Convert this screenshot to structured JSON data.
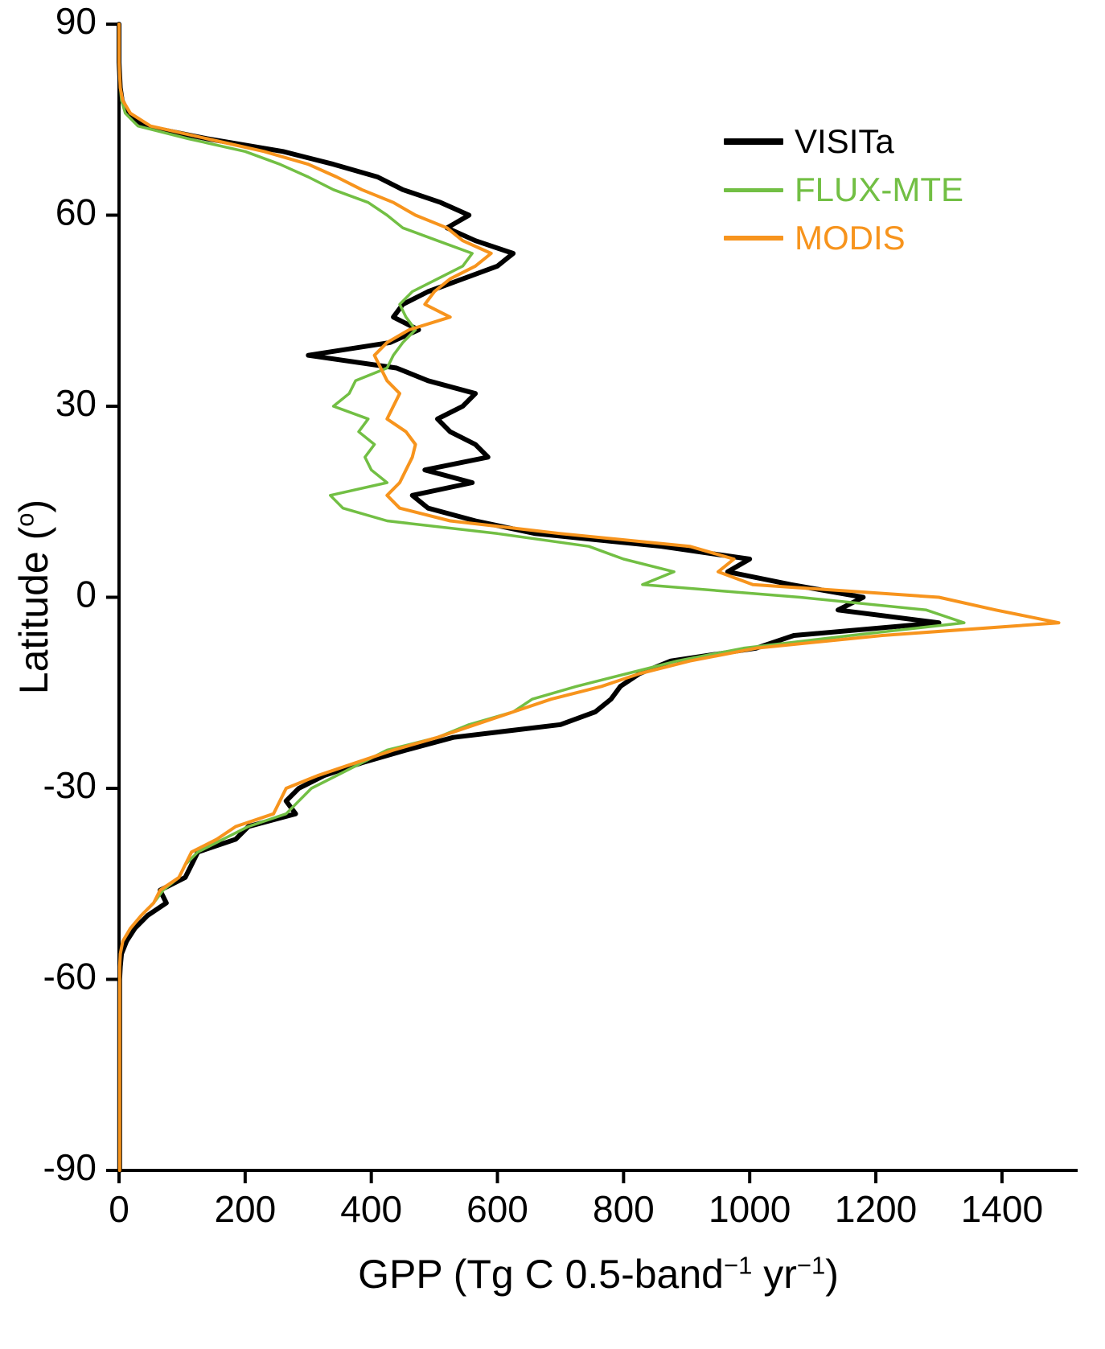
{
  "figure": {
    "background": "#ffffff",
    "axis_color": "#000000"
  },
  "labels": {
    "ylabel_parts": [
      "Latitude (",
      "o",
      ")"
    ],
    "xlabel_parts": [
      "GPP (Tg C 0.5-band",
      "−1",
      " yr",
      "−1",
      ")"
    ]
  },
  "chart_data": {
    "type": "line",
    "orientation": "value-on-x_latitude-on-y",
    "title": "",
    "xlabel": "GPP (Tg C 0.5-band-1 yr-1)",
    "ylabel": "Latitude (deg)",
    "xlim": [
      0,
      1520
    ],
    "ylim": [
      -90,
      90
    ],
    "x_ticks": [
      0,
      200,
      400,
      600,
      800,
      1000,
      1200,
      1400
    ],
    "y_ticks": [
      90,
      60,
      30,
      0,
      -30,
      -60,
      -90
    ],
    "grid": false,
    "legend_position": "top-right-inside",
    "latitudes": [
      90,
      88,
      86,
      84,
      82,
      80,
      78,
      76,
      74,
      72,
      70,
      68,
      66,
      64,
      62,
      60,
      58,
      56,
      54,
      52,
      50,
      48,
      46,
      44,
      42,
      40,
      38,
      36,
      34,
      32,
      30,
      28,
      26,
      24,
      22,
      20,
      18,
      16,
      14,
      12,
      10,
      8,
      6,
      4,
      2,
      0,
      -2,
      -4,
      -6,
      -8,
      -10,
      -12,
      -14,
      -16,
      -18,
      -20,
      -22,
      -24,
      -26,
      -28,
      -30,
      -32,
      -34,
      -36,
      -38,
      -40,
      -42,
      -44,
      -46,
      -48,
      -50,
      -52,
      -54,
      -56,
      -58,
      -60,
      -62,
      -64,
      -66,
      -68,
      -70,
      -72,
      -74,
      -76,
      -78,
      -80,
      -82,
      -84,
      -86,
      -88,
      -90
    ],
    "series": [
      {
        "name": "VISITa",
        "color": "#000000",
        "width": 6,
        "values": [
          0,
          0,
          0,
          0,
          1,
          2,
          5,
          15,
          40,
          140,
          260,
          340,
          410,
          450,
          510,
          555,
          520,
          565,
          625,
          600,
          545,
          490,
          450,
          435,
          475,
          430,
          300,
          440,
          490,
          565,
          545,
          505,
          525,
          565,
          585,
          485,
          560,
          465,
          490,
          565,
          660,
          860,
          1000,
          965,
          1065,
          1180,
          1140,
          1300,
          1070,
          1010,
          875,
          825,
          795,
          780,
          755,
          700,
          530,
          455,
          385,
          325,
          285,
          265,
          280,
          205,
          185,
          125,
          115,
          105,
          65,
          75,
          45,
          25,
          12,
          4,
          2,
          1,
          1,
          1,
          1,
          1,
          1,
          1,
          1,
          1,
          1,
          1,
          1,
          1,
          1,
          1,
          1
        ]
      },
      {
        "name": "FLUX-MTE",
        "color": "#72bf44",
        "width": 3.5,
        "values": [
          0,
          0,
          0,
          0,
          1,
          2,
          4,
          10,
          30,
          110,
          200,
          255,
          300,
          340,
          395,
          425,
          450,
          505,
          560,
          545,
          505,
          465,
          445,
          455,
          470,
          450,
          435,
          425,
          375,
          365,
          340,
          395,
          380,
          405,
          390,
          400,
          425,
          335,
          355,
          425,
          600,
          745,
          800,
          880,
          830,
          1080,
          1280,
          1340,
          1160,
          990,
          885,
          805,
          725,
          655,
          625,
          555,
          505,
          425,
          385,
          345,
          305,
          285,
          265,
          205,
          165,
          125,
          105,
          95,
          70,
          55,
          35,
          18,
          6,
          2,
          1,
          1,
          1,
          1,
          1,
          1,
          1,
          1,
          1,
          1,
          1,
          1,
          1,
          1,
          1,
          1,
          1
        ]
      },
      {
        "name": "MODIS",
        "color": "#f7941d",
        "width": 4,
        "values": [
          0,
          0,
          0,
          0,
          1,
          2,
          6,
          18,
          50,
          140,
          230,
          300,
          345,
          385,
          435,
          470,
          520,
          545,
          590,
          565,
          525,
          500,
          485,
          525,
          460,
          425,
          405,
          415,
          425,
          445,
          435,
          425,
          455,
          470,
          465,
          455,
          445,
          425,
          445,
          525,
          700,
          905,
          975,
          950,
          1005,
          1300,
          1390,
          1490,
          1210,
          1010,
          905,
          825,
          765,
          685,
          625,
          565,
          505,
          435,
          375,
          315,
          265,
          255,
          245,
          185,
          155,
          115,
          105,
          95,
          65,
          55,
          35,
          18,
          6,
          2,
          1,
          1,
          1,
          1,
          1,
          1,
          1,
          1,
          1,
          1,
          1,
          1,
          1,
          1,
          1,
          1,
          1
        ]
      }
    ]
  }
}
